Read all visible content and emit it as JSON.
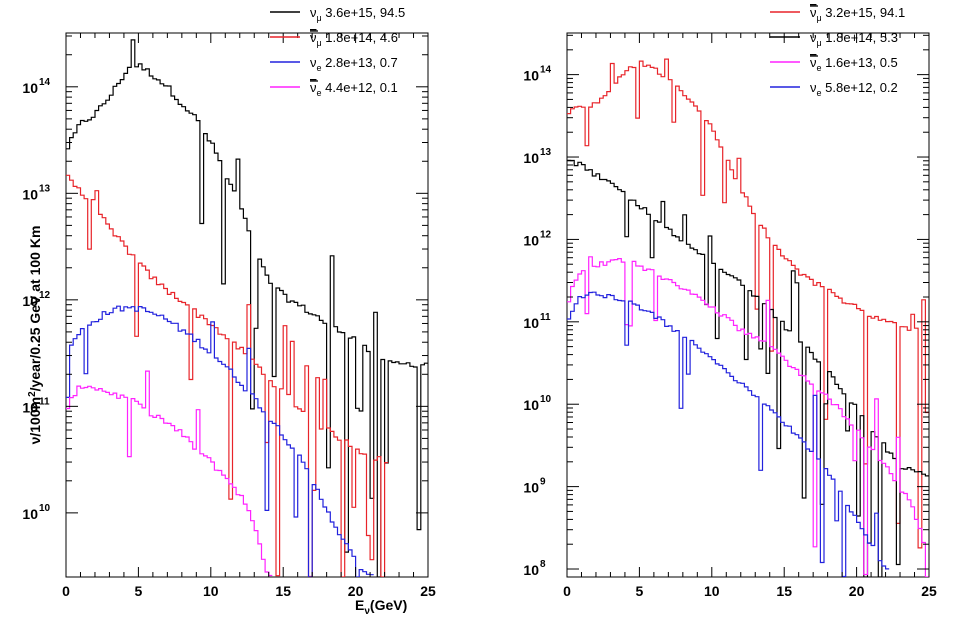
{
  "chart_data": [
    {
      "type": "line",
      "style": "step histogram",
      "y_scale": "log",
      "xlabel": "Eν (GeV)",
      "xlabel_main": "E",
      "xlabel_sub": "ν",
      "xlabel_unit": "(GeV)",
      "ylabel": "ν/100m²/year/0.25 GeV at 100 Km",
      "ylabel_parts": [
        "ν/100m",
        "2",
        "/year/0.25 GeV at 100 Km"
      ],
      "xlim": [
        0,
        25
      ],
      "ylim": [
        2500000000.0,
        320000000000000.0
      ],
      "x_ticks": [
        "0",
        "5",
        "10",
        "15",
        "20",
        "25"
      ],
      "y_ticks": [
        {
          "base": "10",
          "exp": "10",
          "value": 10000000000.0
        },
        {
          "base": "10",
          "exp": "11",
          "value": 100000000000.0
        },
        {
          "base": "10",
          "exp": "12",
          "value": 1000000000000.0
        },
        {
          "base": "10",
          "exp": "13",
          "value": 10000000000000.0
        },
        {
          "base": "10",
          "exp": "14",
          "value": 100000000000000.0
        }
      ],
      "legend": [
        {
          "sym": "ν",
          "bar": false,
          "sub": "μ",
          "text": "3.6e+15, 94.5",
          "color": "#000000"
        },
        {
          "sym": "ν",
          "bar": true,
          "sub": "μ",
          "text": "1.8e+14, 4.6",
          "color": "#e8242a"
        },
        {
          "sym": "ν",
          "bar": false,
          "sub": "e",
          "text": "2.8e+13, 0.7",
          "color": "#2222dd"
        },
        {
          "sym": "ν",
          "bar": true,
          "sub": "e",
          "text": "4.4e+12, 0.1",
          "color": "#ff22ff"
        }
      ],
      "series": [
        {
          "name": "numu",
          "color": "#000000",
          "x": [
            0,
            1,
            2,
            3,
            4,
            4.5,
            5,
            6,
            7,
            8,
            9,
            10,
            10.5,
            11,
            12,
            13,
            14,
            15,
            16,
            17,
            18,
            19,
            20,
            21,
            22,
            23,
            24,
            25
          ],
          "values": [
            25000000000000.0,
            45000000000000.0,
            55000000000000.0,
            80000000000000.0,
            130000000000000.0,
            160000000000000.0,
            160000000000000.0,
            130000000000000.0,
            100000000000000.0,
            70000000000000.0,
            50000000000000.0,
            30000000000000.0,
            22000000000000.0,
            15000000000000.0,
            8000000000000.0,
            3000000000000.0,
            1500000000000.0,
            1100000000000.0,
            900000000000.0,
            750000000000.0,
            600000000000.0,
            500000000000.0,
            450000000000.0,
            320000000000.0,
            250000000000.0,
            250000000000.0,
            250000000000.0,
            250000000000.0
          ]
        },
        {
          "name": "numubar",
          "color": "#e8242a",
          "x": [
            0,
            1,
            2,
            3,
            4,
            5,
            6,
            7,
            8,
            9,
            10,
            11,
            12,
            13,
            14,
            15,
            16,
            17,
            18,
            19,
            20,
            21,
            22
          ],
          "values": [
            16000000000000.0,
            10000000000000.0,
            8000000000000.0,
            4500000000000.0,
            3300000000000.0,
            2200000000000.0,
            1600000000000.0,
            1200000000000.0,
            1000000000000.0,
            750000000000.0,
            600000000000.0,
            450000000000.0,
            350000000000.0,
            260000000000.0,
            180000000000.0,
            140000000000.0,
            100000000000.0,
            75000000000.0,
            60000000000.0,
            50000000000.0,
            40000000000.0,
            35000000000.0,
            30000000000.0
          ]
        },
        {
          "name": "nue",
          "color": "#2222dd",
          "x": [
            0,
            0.5,
            1,
            2,
            3,
            4,
            4.5,
            5,
            6,
            7,
            8,
            9,
            10,
            11,
            12,
            13,
            14,
            15,
            16,
            17,
            18,
            19,
            20,
            21
          ],
          "values": [
            280000000000.0,
            400000000000.0,
            500000000000.0,
            650000000000.0,
            780000000000.0,
            840000000000.0,
            850000000000.0,
            830000000000.0,
            750000000000.0,
            650000000000.0,
            520000000000.0,
            420000000000.0,
            320000000000.0,
            240000000000.0,
            170000000000.0,
            120000000000.0,
            80000000000.0,
            55000000000.0,
            35000000000.0,
            20000000000.0,
            11000000000.0,
            6000000000.0,
            3500000000.0,
            2500000000.0
          ]
        },
        {
          "name": "nuebar",
          "color": "#ff22ff",
          "x": [
            0,
            0.5,
            1,
            1.5,
            2,
            3,
            4,
            5,
            6,
            7,
            8,
            9,
            10,
            11,
            12,
            13,
            14
          ],
          "values": [
            80000000000.0,
            130000000000.0,
            150000000000.0,
            160000000000.0,
            150000000000.0,
            135000000000.0,
            120000000000.0,
            105000000000.0,
            85000000000.0,
            70000000000.0,
            55000000000.0,
            40000000000.0,
            30000000000.0,
            22000000000.0,
            15000000000.0,
            8000000000.0,
            2500000000.0
          ]
        }
      ]
    },
    {
      "type": "line",
      "style": "step histogram",
      "y_scale": "log",
      "xlim": [
        0,
        25
      ],
      "ylim": [
        80000000.0,
        320000000000000.0
      ],
      "x_ticks": [
        "0",
        "5",
        "10",
        "15",
        "20",
        "25"
      ],
      "y_ticks": [
        {
          "base": "10",
          "exp": "8",
          "value": 100000000.0
        },
        {
          "base": "10",
          "exp": "9",
          "value": 1000000000.0
        },
        {
          "base": "10",
          "exp": "10",
          "value": 10000000000.0
        },
        {
          "base": "10",
          "exp": "11",
          "value": 100000000000.0
        },
        {
          "base": "10",
          "exp": "12",
          "value": 1000000000000.0
        },
        {
          "base": "10",
          "exp": "13",
          "value": 10000000000000.0
        },
        {
          "base": "10",
          "exp": "14",
          "value": 100000000000000.0
        }
      ],
      "legend": [
        {
          "sym": "ν",
          "bar": true,
          "sub": "μ",
          "text": "3.2e+15, 94.1",
          "color": "#e8242a"
        },
        {
          "sym": "ν",
          "bar": false,
          "sub": "μ",
          "text": "1.8e+14, 5.3",
          "color": "#000000"
        },
        {
          "sym": "ν",
          "bar": true,
          "sub": "e",
          "text": "1.6e+13, 0.5",
          "color": "#ff22ff"
        },
        {
          "sym": "ν",
          "bar": false,
          "sub": "e",
          "text": "5.8e+12, 0.2",
          "color": "#2222dd"
        }
      ],
      "series": [
        {
          "name": "numubar",
          "color": "#e8242a",
          "x": [
            0,
            0.5,
            1,
            2,
            3,
            4,
            5,
            6,
            7,
            8,
            9,
            10,
            11,
            12,
            13,
            14,
            15,
            16,
            17,
            18,
            19,
            20,
            21,
            22,
            23,
            24,
            25
          ],
          "values": [
            30000000000000.0,
            40000000000000.0,
            40000000000000.0,
            45000000000000.0,
            70000000000000.0,
            110000000000000.0,
            140000000000000.0,
            120000000000000.0,
            90000000000000.0,
            60000000000000.0,
            40000000000000.0,
            22000000000000.0,
            10000000000000.0,
            4000000000000.0,
            2000000000000.0,
            1000000000000.0,
            600000000000.0,
            400000000000.0,
            300000000000.0,
            250000000000.0,
            180000000000.0,
            150000000000.0,
            120000000000.0,
            100000000000.0,
            90000000000.0,
            80000000000.0,
            80000000000.0
          ]
        },
        {
          "name": "numu",
          "color": "#000000",
          "x": [
            0,
            1,
            2,
            3,
            4,
            5,
            6,
            7,
            8,
            9,
            10,
            11,
            12,
            13,
            14,
            15,
            16,
            17,
            18,
            19,
            20,
            21,
            22,
            23,
            24,
            25
          ],
          "values": [
            9000000000000.0,
            8000000000000.0,
            6000000000000.0,
            5000000000000.0,
            3500000000000.0,
            2600000000000.0,
            1800000000000.0,
            1300000000000.0,
            900000000000.0,
            700000000000.0,
            500000000000.0,
            400000000000.0,
            300000000000.0,
            200000000000.0,
            140000000000.0,
            90000000000.0,
            60000000000.0,
            40000000000.0,
            25000000000.0,
            15000000000.0,
            9000000000.0,
            5000000000.0,
            3000000000.0,
            1800000000.0,
            1500000000.0,
            1400000000.0
          ]
        },
        {
          "name": "nuebar",
          "color": "#ff22ff",
          "x": [
            0,
            0.5,
            1,
            2,
            3,
            3.5,
            4,
            5,
            6,
            7,
            8,
            9,
            10,
            11,
            12,
            13,
            14,
            15,
            16,
            17,
            18,
            19,
            20,
            21,
            22,
            23,
            24,
            25
          ],
          "values": [
            150000000000.0,
            300000000000.0,
            380000000000.0,
            470000000000.0,
            550000000000.0,
            580000000000.0,
            560000000000.0,
            480000000000.0,
            400000000000.0,
            320000000000.0,
            260000000000.0,
            200000000000.0,
            150000000000.0,
            110000000000.0,
            80000000000.0,
            65000000000.0,
            50000000000.0,
            35000000000.0,
            25000000000.0,
            18000000000.0,
            12000000000.0,
            8000000000.0,
            5000000000.0,
            3000000000.0,
            1800000000.0,
            1000000000.0,
            500000000.0,
            120000000.0
          ]
        },
        {
          "name": "nue",
          "color": "#2222dd",
          "x": [
            0,
            0.5,
            1,
            2,
            3,
            4,
            5,
            6,
            7,
            8,
            9,
            10,
            11,
            12,
            13,
            14,
            15,
            16,
            17,
            18,
            19,
            20,
            21,
            22
          ],
          "values": [
            90000000000.0,
            160000000000.0,
            200000000000.0,
            220000000000.0,
            200000000000.0,
            180000000000.0,
            150000000000.0,
            120000000000.0,
            90000000000.0,
            70000000000.0,
            50000000000.0,
            35000000000.0,
            25000000000.0,
            18000000000.0,
            13000000000.0,
            9000000000.0,
            6000000000.0,
            4000000000.0,
            2500000000.0,
            1500000000.0,
            800000000.0,
            400000000.0,
            200000000.0,
            100000000.0
          ]
        }
      ]
    }
  ]
}
